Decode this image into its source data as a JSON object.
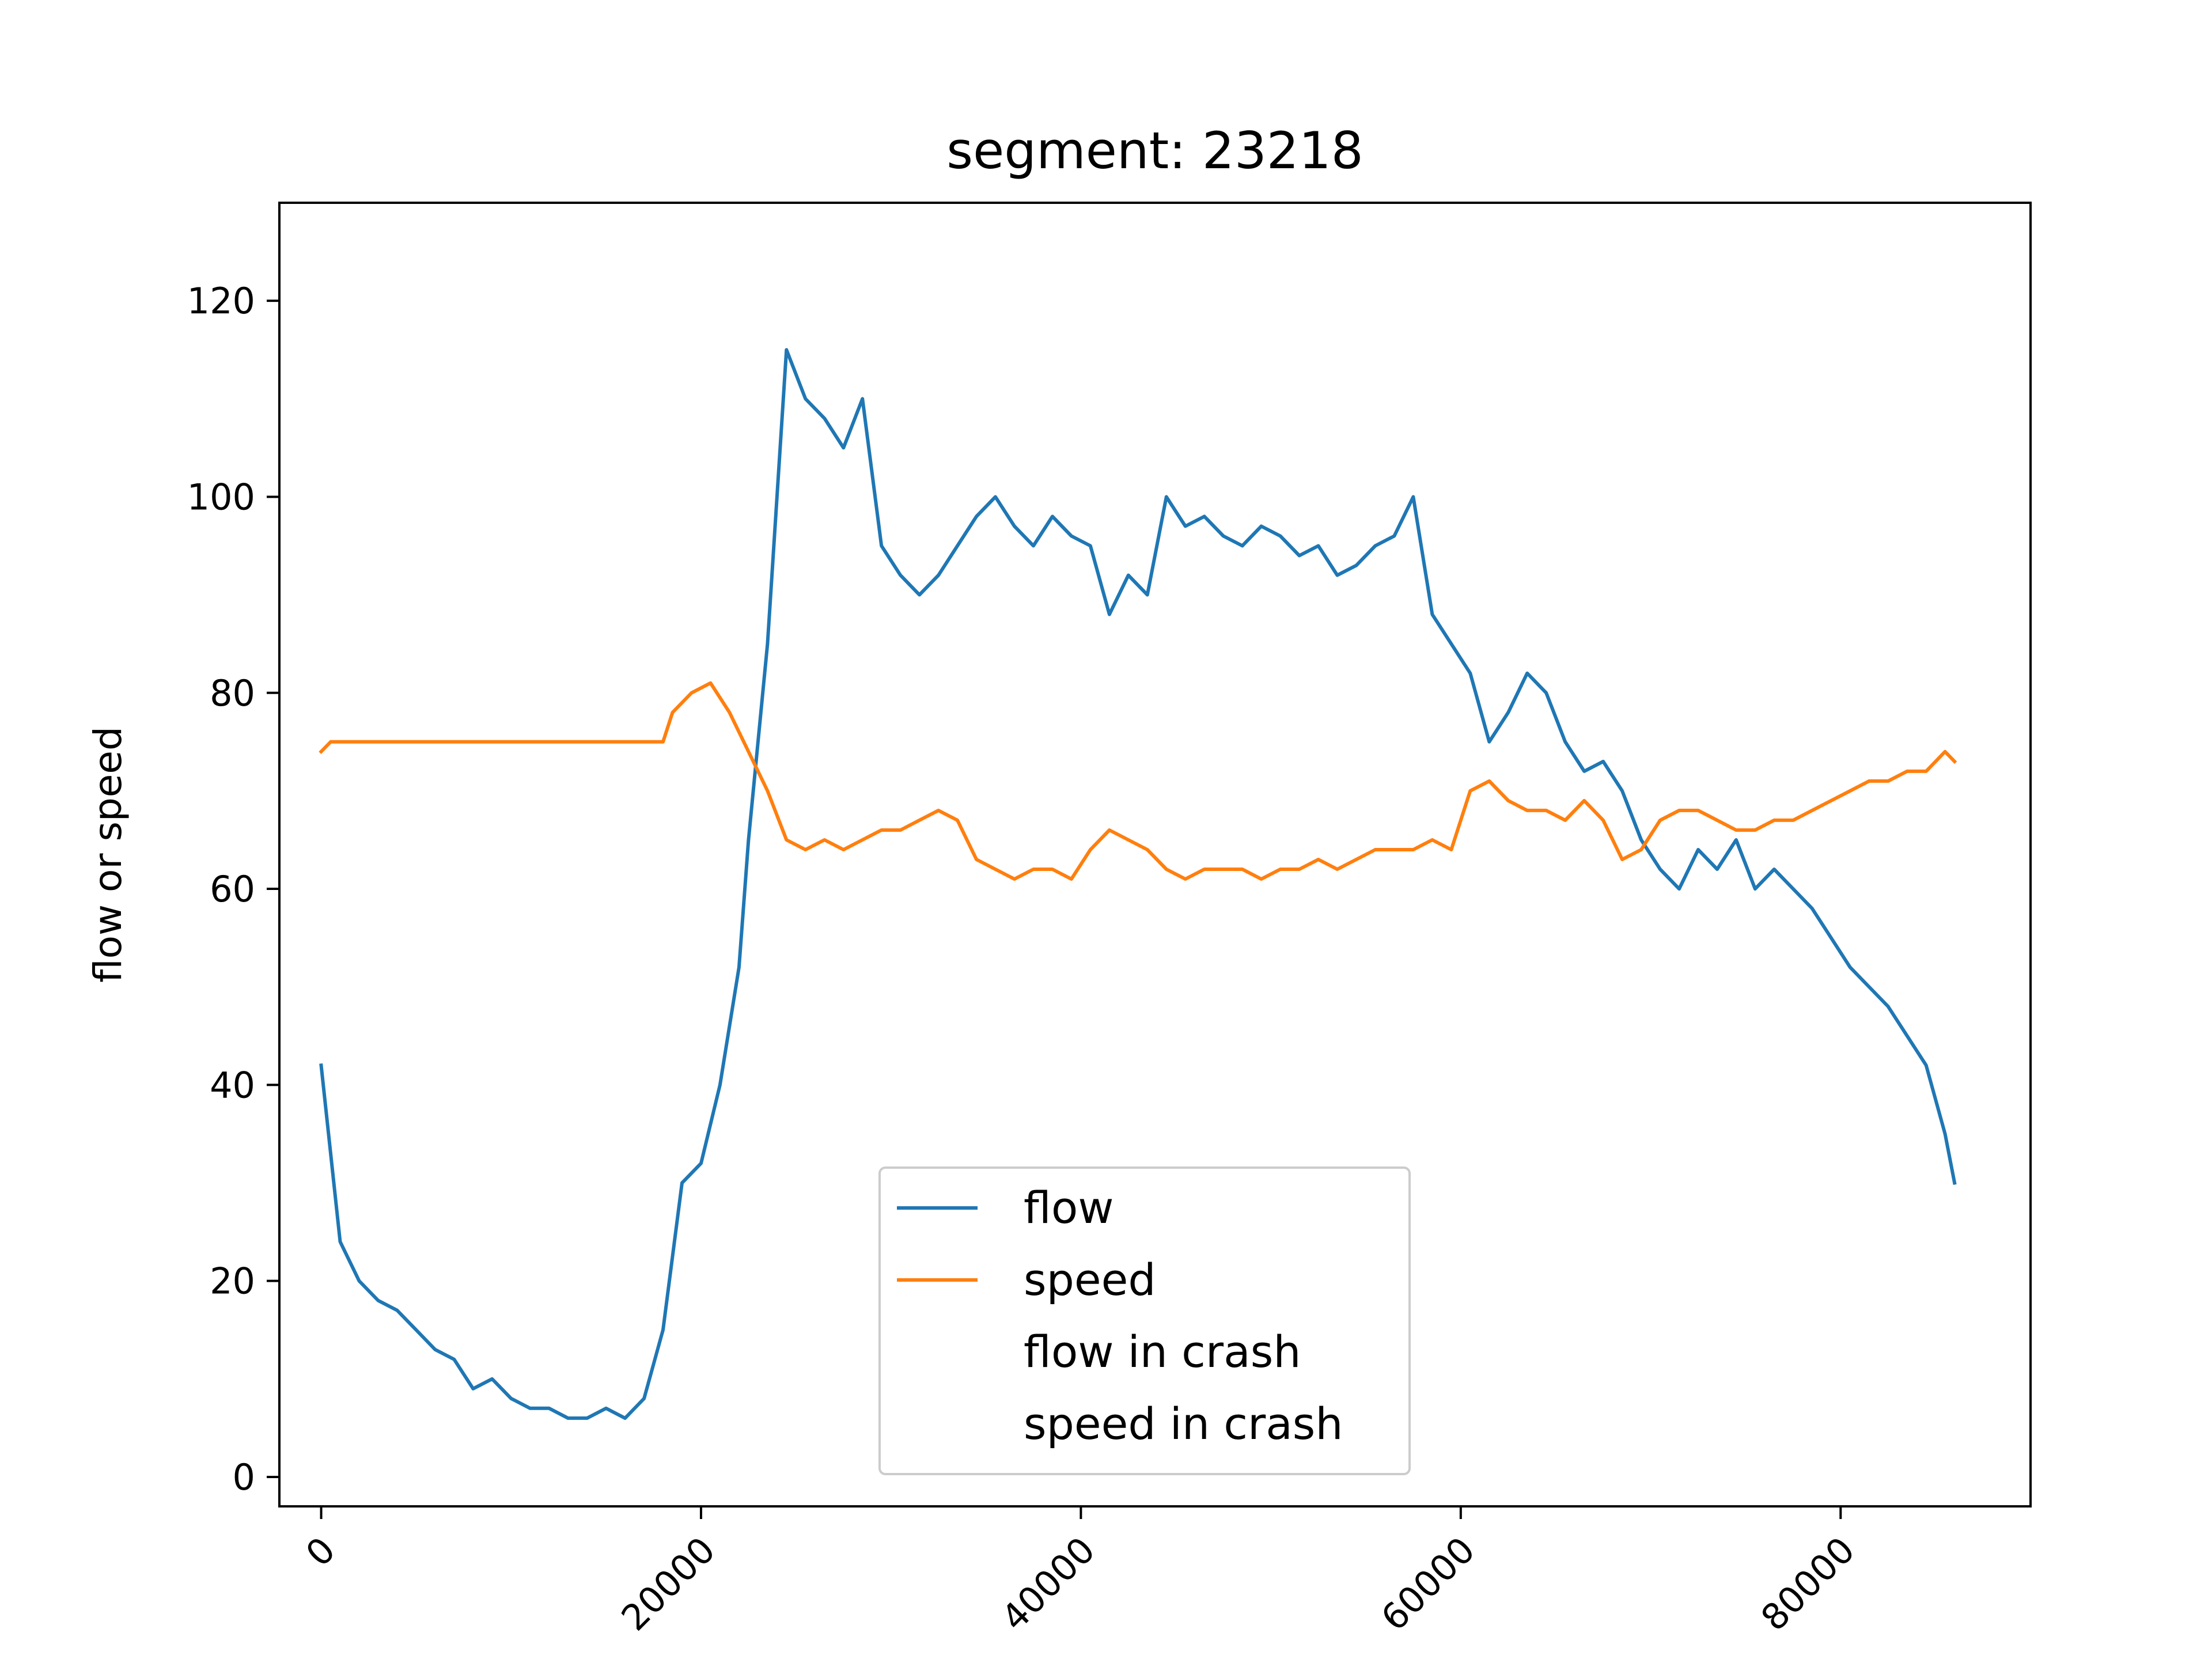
{
  "chart_data": {
    "type": "line",
    "title": "segment: 23218",
    "xlabel": "",
    "ylabel": "flow or speed",
    "xlim": [
      -2200,
      90000
    ],
    "ylim": [
      -3,
      130
    ],
    "xticks": [
      0,
      20000,
      40000,
      60000,
      80000
    ],
    "xtick_labels": [
      "0",
      "20000",
      "40000",
      "60000",
      "80000"
    ],
    "yticks": [
      0,
      20,
      40,
      60,
      80,
      100,
      120
    ],
    "ytick_labels": [
      "0",
      "20",
      "40",
      "60",
      "80",
      "100",
      "120"
    ],
    "grid": false,
    "legend_position": "lower center",
    "series": [
      {
        "name": "flow",
        "color": "#1f77b4",
        "x": [
          0,
          1000,
          2000,
          3000,
          4000,
          5000,
          6000,
          7000,
          8000,
          9000,
          10000,
          11000,
          12000,
          13000,
          14000,
          15000,
          16000,
          17000,
          18000,
          19000,
          20000,
          21000,
          22000,
          22500,
          23500,
          24500,
          25500,
          26500,
          27500,
          28500,
          29500,
          30500,
          31500,
          32500,
          33500,
          34500,
          35500,
          36500,
          37500,
          38500,
          39500,
          40500,
          41500,
          42500,
          43500,
          44500,
          45500,
          46500,
          47500,
          48500,
          49500,
          50500,
          51500,
          52500,
          53500,
          54500,
          55500,
          56500,
          57500,
          58500,
          59500,
          60500,
          61500,
          62500,
          63500,
          64500,
          65500,
          66500,
          67500,
          68500,
          69500,
          70500,
          71500,
          72500,
          73500,
          74500,
          75500,
          76500,
          77500,
          78500,
          79500,
          80500,
          81500,
          82500,
          83500,
          84500,
          85500,
          86000
        ],
        "values": [
          42,
          24,
          20,
          18,
          17,
          15,
          13,
          12,
          9,
          10,
          8,
          7,
          7,
          6,
          6,
          7,
          6,
          8,
          15,
          30,
          32,
          40,
          52,
          65,
          85,
          115,
          110,
          108,
          105,
          110,
          95,
          92,
          90,
          92,
          95,
          98,
          100,
          97,
          95,
          98,
          96,
          95,
          88,
          92,
          90,
          100,
          97,
          98,
          96,
          95,
          97,
          96,
          94,
          95,
          92,
          93,
          95,
          96,
          100,
          88,
          85,
          82,
          75,
          78,
          82,
          80,
          75,
          72,
          73,
          70,
          65,
          62,
          60,
          64,
          62,
          65,
          60,
          62,
          60,
          58,
          55,
          52,
          50,
          48,
          45,
          42,
          35,
          30
        ]
      },
      {
        "name": "speed",
        "color": "#ff7f0e",
        "x": [
          0,
          500,
          1000,
          18000,
          18500,
          19500,
          20500,
          21500,
          22500,
          23500,
          24500,
          25500,
          26500,
          27500,
          28500,
          29500,
          30500,
          31500,
          32500,
          33500,
          34500,
          35500,
          36500,
          37500,
          38500,
          39500,
          40500,
          41500,
          42500,
          43500,
          44500,
          45500,
          46500,
          47500,
          48500,
          49500,
          50500,
          51500,
          52500,
          53500,
          54500,
          55500,
          56500,
          57500,
          58500,
          59500,
          60500,
          61500,
          62500,
          63500,
          64500,
          65500,
          66500,
          67500,
          68500,
          69500,
          70500,
          71500,
          72500,
          73500,
          74500,
          75500,
          76500,
          77500,
          78500,
          79500,
          80500,
          81500,
          82500,
          83500,
          84500,
          85500,
          86000
        ],
        "values": [
          74,
          75,
          75,
          75,
          78,
          80,
          81,
          78,
          74,
          70,
          65,
          64,
          65,
          64,
          65,
          66,
          66,
          67,
          68,
          67,
          63,
          62,
          61,
          62,
          62,
          61,
          64,
          66,
          65,
          64,
          62,
          61,
          62,
          62,
          62,
          61,
          62,
          62,
          63,
          62,
          63,
          64,
          64,
          64,
          65,
          64,
          70,
          71,
          69,
          68,
          68,
          67,
          69,
          67,
          63,
          64,
          67,
          68,
          68,
          67,
          66,
          66,
          67,
          67,
          68,
          69,
          70,
          71,
          71,
          72,
          72,
          74,
          73
        ]
      },
      {
        "name": "flow in crash",
        "color": "#2ca02c",
        "x": [],
        "values": []
      },
      {
        "name": "speed in crash",
        "color": "#d62728",
        "x": [],
        "values": []
      }
    ]
  }
}
